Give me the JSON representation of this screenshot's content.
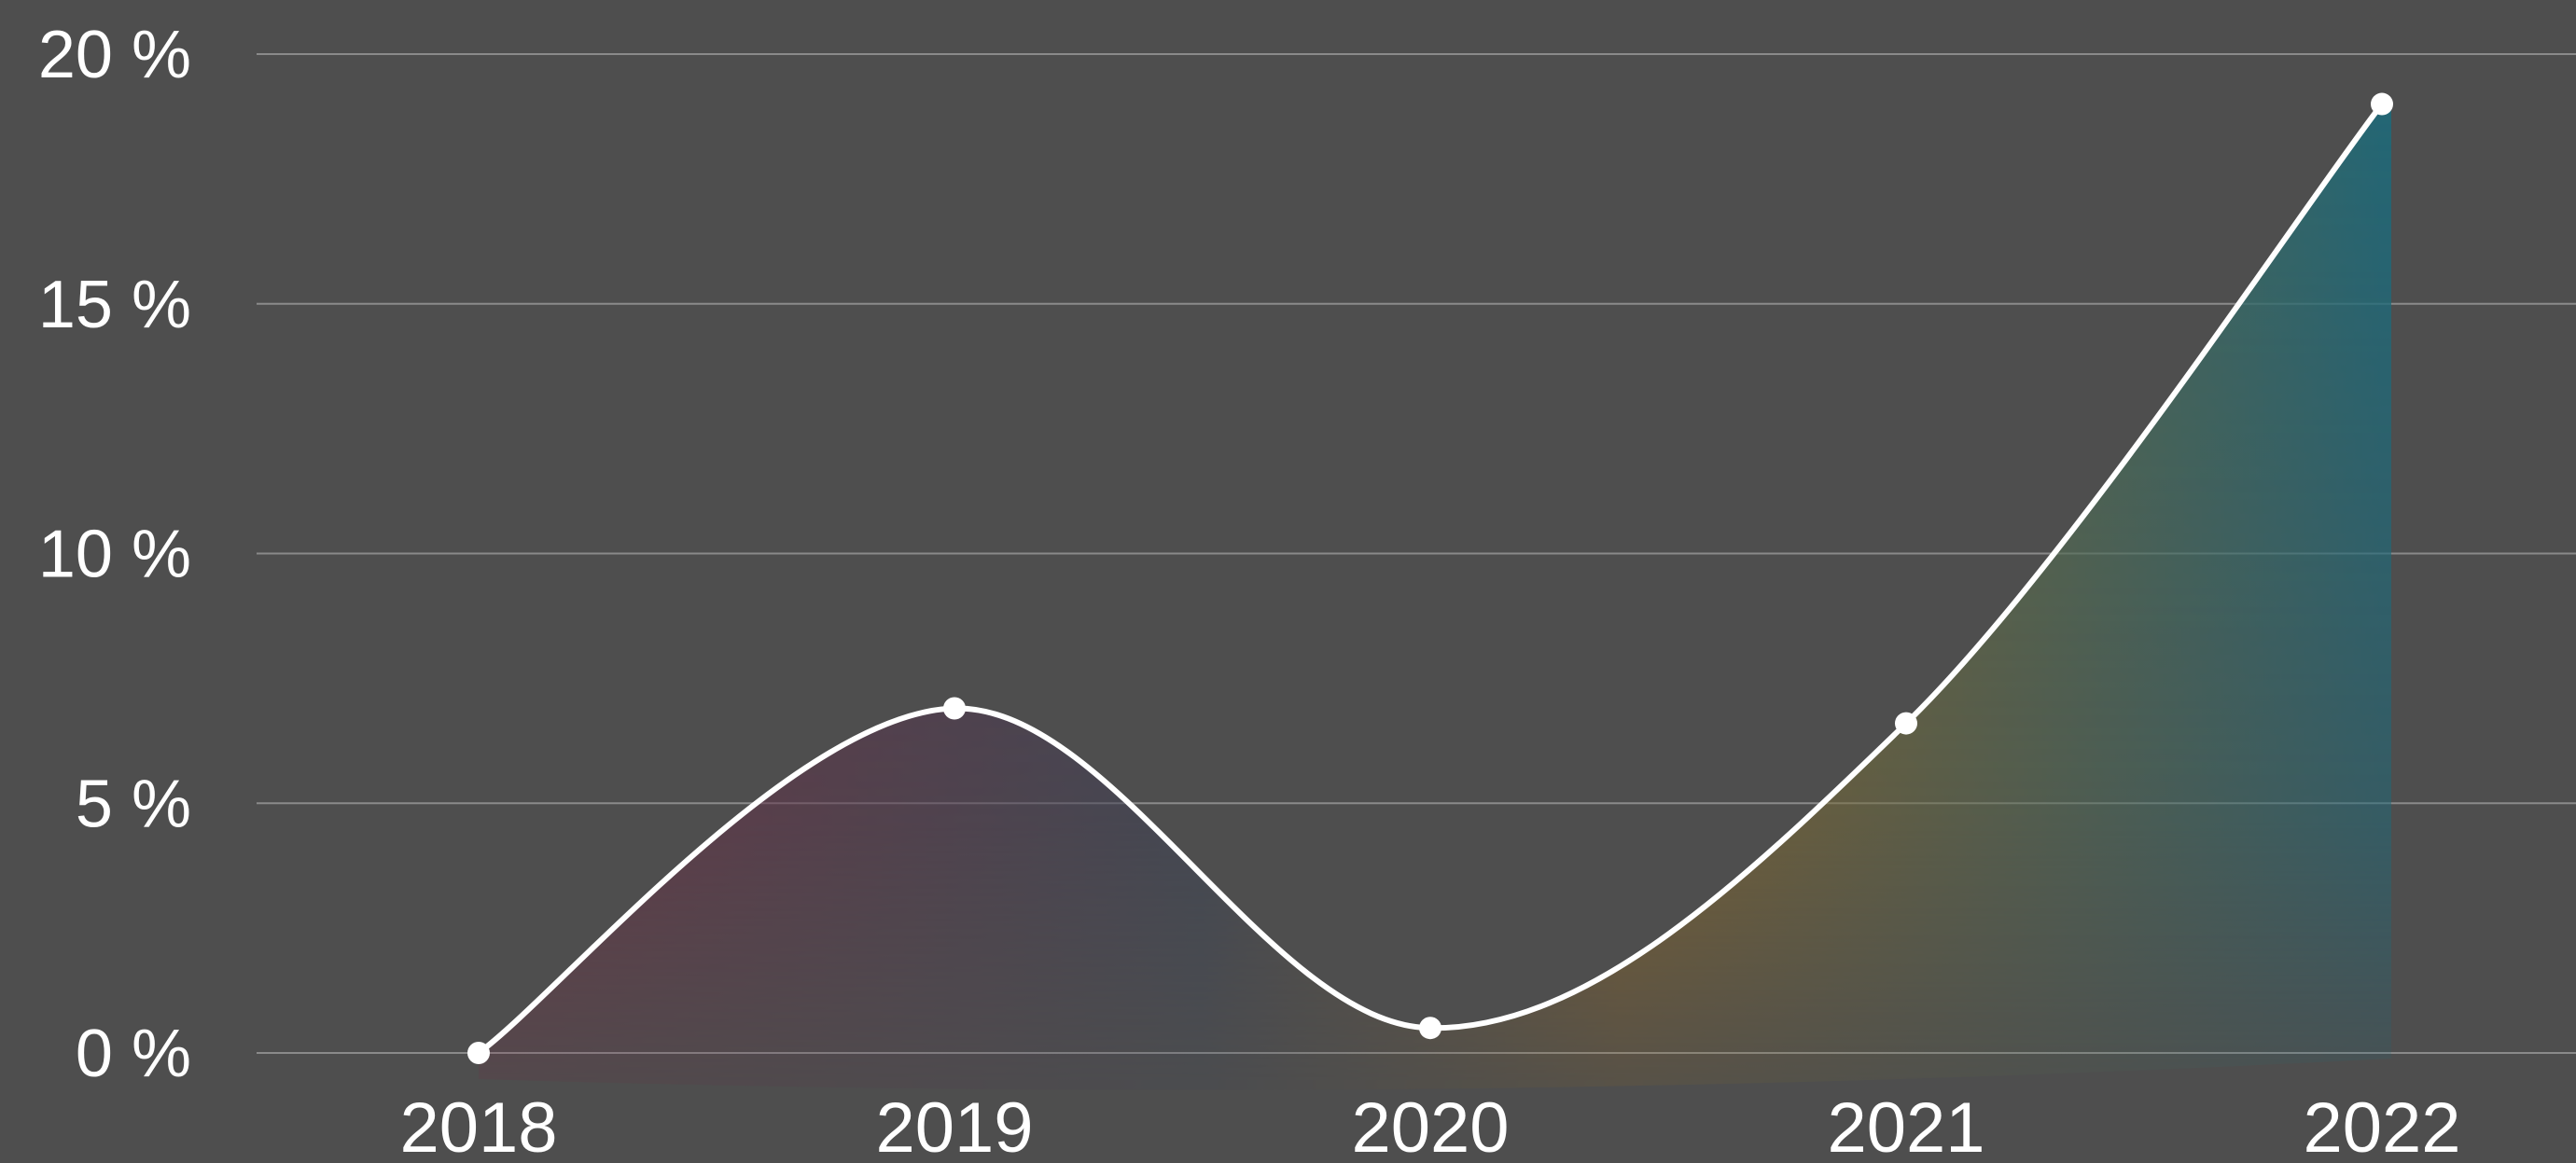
{
  "chart_data": {
    "type": "area",
    "categories": [
      "2018",
      "2019",
      "2020",
      "2021",
      "2022"
    ],
    "values": [
      0,
      6.9,
      0.5,
      6.6,
      19
    ],
    "ylim": [
      0,
      20
    ],
    "yticks": [
      0,
      5,
      10,
      15,
      20
    ],
    "ytick_labels": [
      "0 %",
      "5 %",
      "10 %",
      "15 %",
      "20 %"
    ],
    "title": "",
    "xlabel": "",
    "ylabel": "",
    "grid": true,
    "legend": "none",
    "colors": {
      "background": "#4e4e4e",
      "gridline": "#8a8a8a",
      "line": "#ffffff",
      "point": "#ffffff",
      "text": "#ffffff",
      "fill_stops": [
        "#7a2640",
        "#3a4256",
        "#9a6c1c",
        "#1e6a7a"
      ]
    }
  }
}
